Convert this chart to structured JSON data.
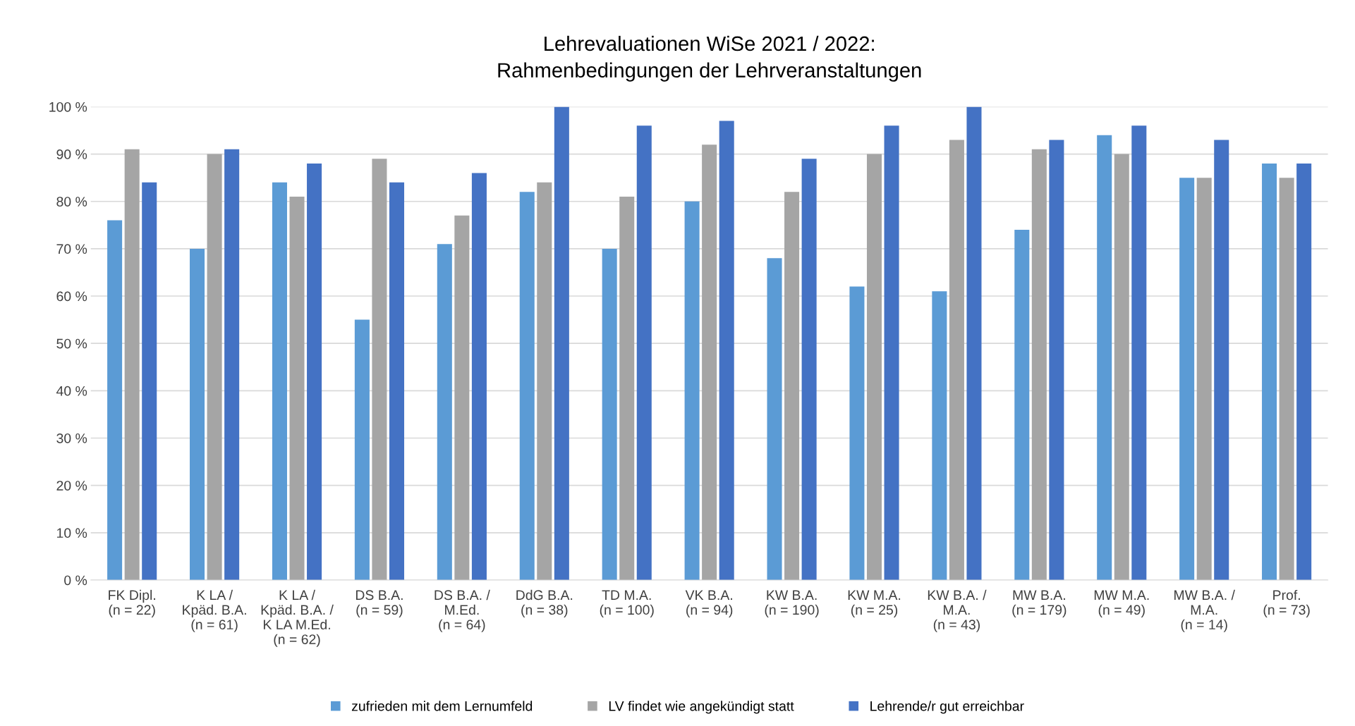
{
  "chart_data": {
    "type": "bar",
    "title": "Lehrevaluationen WiSe 2021 / 2022:\nRahmenbedingungen der Lehrveranstaltungen",
    "categories": [
      "FK Dipl.\n(n = 22)",
      "K LA /\nKpäd. B.A.\n(n = 61)",
      "K LA /\nKpäd. B.A. /\nK LA M.Ed.\n(n = 62)",
      "DS B.A.\n(n = 59)",
      "DS B.A. /\nM.Ed.\n(n = 64)",
      "DdG B.A.\n(n = 38)",
      "TD M.A.\n(n = 100)",
      "VK B.A.\n(n = 94)",
      "KW B.A.\n(n = 190)",
      "KW M.A.\n(n = 25)",
      "KW B.A. /\nM.A.\n(n = 43)",
      "MW B.A.\n(n = 179)",
      "MW M.A.\n(n = 49)",
      "MW B.A. /\nM.A.\n(n = 14)",
      "Prof.\n(n = 73)"
    ],
    "series": [
      {
        "name": "zufrieden mit dem Lernumfeld",
        "color": "#5b9bd5",
        "values": [
          76,
          70,
          84,
          55,
          71,
          82,
          70,
          80,
          68,
          62,
          61,
          74,
          94,
          85,
          88
        ]
      },
      {
        "name": "LV findet wie angekündigt statt",
        "color": "#a5a5a5",
        "values": [
          91,
          90,
          81,
          89,
          77,
          84,
          81,
          92,
          82,
          90,
          93,
          91,
          90,
          85,
          85
        ]
      },
      {
        "name": "Lehrende/r gut erreichbar",
        "color": "#4472c4",
        "values": [
          84,
          91,
          88,
          84,
          86,
          100,
          96,
          97,
          89,
          96,
          100,
          93,
          96,
          93,
          88
        ]
      }
    ],
    "ylim": [
      0,
      100
    ],
    "yticks": [
      {
        "value": 0,
        "label": "0 %"
      },
      {
        "value": 10,
        "label": "10 %"
      },
      {
        "value": 20,
        "label": "20 %"
      },
      {
        "value": 30,
        "label": "30 %"
      },
      {
        "value": 40,
        "label": "40 %"
      },
      {
        "value": 50,
        "label": "50 %"
      },
      {
        "value": 60,
        "label": "60 %"
      },
      {
        "value": 70,
        "label": "70 %"
      },
      {
        "value": 80,
        "label": "80 %"
      },
      {
        "value": 90,
        "label": "90 %"
      },
      {
        "value": 100,
        "label": "100 %"
      }
    ],
    "grid": "y",
    "legend": "bottom"
  }
}
